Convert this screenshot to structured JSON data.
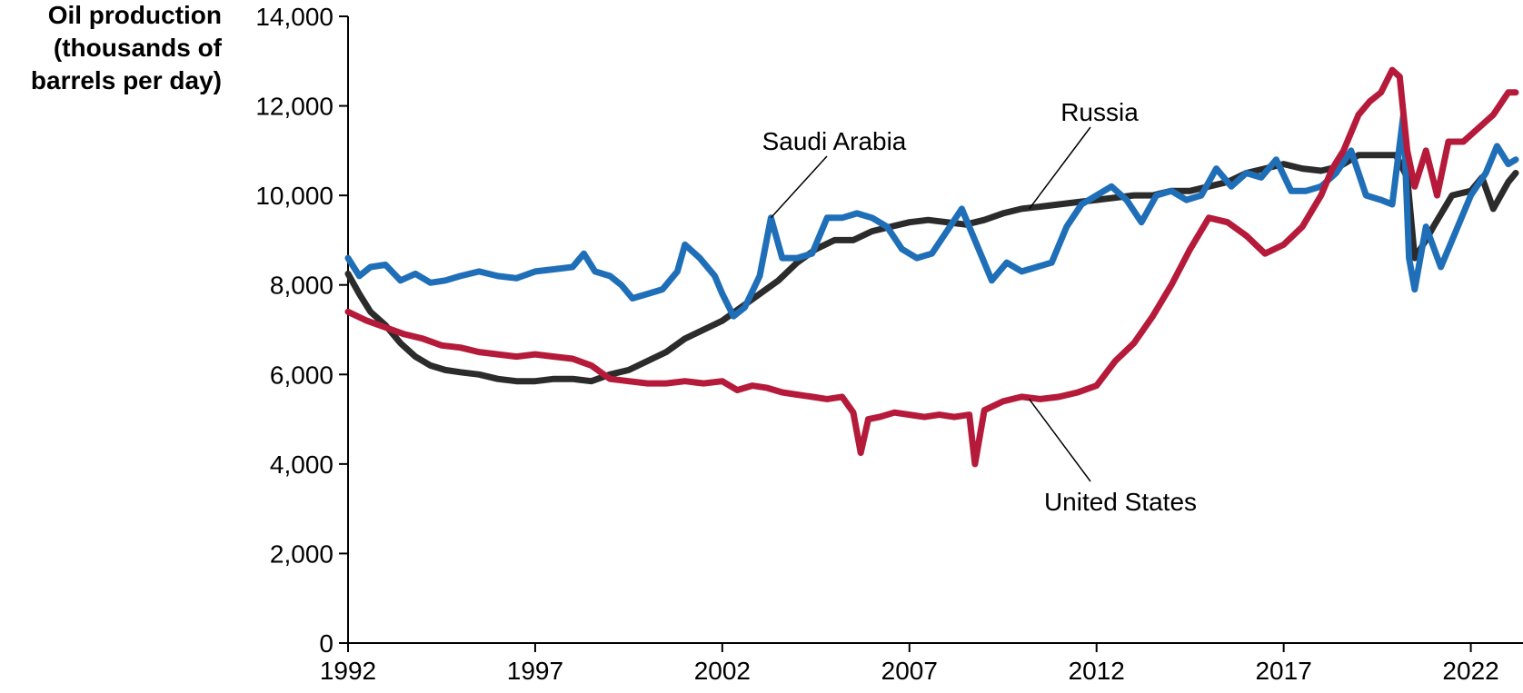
{
  "chart_data": {
    "type": "line",
    "ylabel": [
      "Oil production",
      "(thousands of",
      "barrels per day)"
    ],
    "ylim": [
      0,
      14000
    ],
    "xlim": [
      1992,
      2023.2
    ],
    "yticks": [
      "0",
      "2,000",
      "4,000",
      "6,000",
      "8,000",
      "10,000",
      "12,000",
      "14,000"
    ],
    "xticks": [
      "1992",
      "1997",
      "2002",
      "2007",
      "2012",
      "2017",
      "2022"
    ],
    "grid": false,
    "series": [
      {
        "name": "Russia",
        "color": "#2b2b2b",
        "x": [
          1992,
          1992.3,
          1992.6,
          1993,
          1993.4,
          1993.8,
          1994.2,
          1994.6,
          1995,
          1995.5,
          1996,
          1996.5,
          1997,
          1997.5,
          1998,
          1998.5,
          1999,
          1999.5,
          2000,
          2000.5,
          2001,
          2001.5,
          2002,
          2002.5,
          2003,
          2003.5,
          2004,
          2004.5,
          2005,
          2005.5,
          2006,
          2006.5,
          2007,
          2007.5,
          2008,
          2008.5,
          2009,
          2009.5,
          2010,
          2010.5,
          2011,
          2011.5,
          2012,
          2012.5,
          2013,
          2013.5,
          2014,
          2014.5,
          2015,
          2015.5,
          2016,
          2016.5,
          2017,
          2017.5,
          2018,
          2018.5,
          2019,
          2019.5,
          2020,
          2020.3,
          2020.5,
          2020.8,
          2021,
          2021.5,
          2022,
          2022.3,
          2022.6,
          2023,
          2023.2
        ],
        "values": [
          8250,
          7800,
          7400,
          7100,
          6700,
          6400,
          6200,
          6100,
          6050,
          6000,
          5900,
          5850,
          5850,
          5900,
          5900,
          5850,
          6000,
          6100,
          6300,
          6500,
          6800,
          7000,
          7200,
          7500,
          7800,
          8100,
          8500,
          8800,
          9000,
          9000,
          9200,
          9300,
          9400,
          9450,
          9400,
          9350,
          9450,
          9600,
          9700,
          9750,
          9800,
          9850,
          9900,
          9950,
          10000,
          10000,
          10100,
          10100,
          10200,
          10300,
          10500,
          10600,
          10700,
          10600,
          10550,
          10650,
          10900,
          10900,
          10900,
          10400,
          8600,
          9000,
          9300,
          10000,
          10100,
          10400,
          9700,
          10300,
          10500
        ]
      },
      {
        "name": "Saudi Arabia",
        "color": "#1f6fb8",
        "x": [
          1992,
          1992.3,
          1992.6,
          1993,
          1993.4,
          1993.8,
          1994.2,
          1994.6,
          1995,
          1995.5,
          1996,
          1996.5,
          1997,
          1997.5,
          1998,
          1998.3,
          1998.6,
          1999,
          1999.3,
          1999.6,
          2000,
          2000.4,
          2000.8,
          2001,
          2001.4,
          2001.8,
          2002,
          2002.3,
          2002.6,
          2003,
          2003.3,
          2003.6,
          2004,
          2004.4,
          2004.8,
          2005.2,
          2005.6,
          2006,
          2006.4,
          2006.8,
          2007.2,
          2007.6,
          2008,
          2008.4,
          2008.8,
          2009.2,
          2009.6,
          2010,
          2010.4,
          2010.8,
          2011.2,
          2011.6,
          2012,
          2012.4,
          2012.8,
          2013.2,
          2013.6,
          2014,
          2014.4,
          2014.8,
          2015.2,
          2015.6,
          2016,
          2016.4,
          2016.8,
          2017.2,
          2017.6,
          2018,
          2018.4,
          2018.8,
          2019.2,
          2019.6,
          2019.9,
          2020.2,
          2020.35,
          2020.5,
          2020.8,
          2021.2,
          2021.6,
          2022,
          2022.4,
          2022.7,
          2023,
          2023.2
        ],
        "values": [
          8600,
          8200,
          8400,
          8450,
          8100,
          8250,
          8050,
          8100,
          8200,
          8300,
          8200,
          8150,
          8300,
          8350,
          8400,
          8700,
          8300,
          8200,
          8000,
          7700,
          7800,
          7900,
          8300,
          8900,
          8600,
          8200,
          7800,
          7300,
          7500,
          8200,
          9500,
          8600,
          8600,
          8700,
          9500,
          9500,
          9600,
          9500,
          9300,
          8800,
          8600,
          8700,
          9200,
          9700,
          8900,
          8100,
          8500,
          8300,
          8400,
          8500,
          9300,
          9800,
          10000,
          10200,
          9900,
          9400,
          10000,
          10100,
          9900,
          10000,
          10600,
          10200,
          10500,
          10400,
          10800,
          10100,
          10100,
          10200,
          10500,
          11000,
          10000,
          9900,
          9800,
          11800,
          8600,
          7900,
          9300,
          8400,
          9200,
          10000,
          10500,
          11100,
          10700,
          10800
        ]
      },
      {
        "name": "United States",
        "color": "#b51a3a",
        "x": [
          1992,
          1992.5,
          1993,
          1993.5,
          1994,
          1994.5,
          1995,
          1995.5,
          1996,
          1996.5,
          1997,
          1997.5,
          1998,
          1998.5,
          1999,
          1999.5,
          2000,
          2000.5,
          2001,
          2001.5,
          2002,
          2002.4,
          2002.8,
          2003.2,
          2003.6,
          2004,
          2004.4,
          2004.8,
          2005.2,
          2005.5,
          2005.7,
          2005.9,
          2006.2,
          2006.6,
          2007,
          2007.4,
          2007.8,
          2008.2,
          2008.6,
          2008.75,
          2009,
          2009.5,
          2010,
          2010.5,
          2011,
          2011.5,
          2012,
          2012.5,
          2013,
          2013.5,
          2014,
          2014.5,
          2015,
          2015.5,
          2016,
          2016.5,
          2017,
          2017.5,
          2018,
          2018.3,
          2018.6,
          2019,
          2019.3,
          2019.6,
          2019.9,
          2020.1,
          2020.3,
          2020.5,
          2020.8,
          2021.1,
          2021.4,
          2021.8,
          2022.2,
          2022.6,
          2023,
          2023.2
        ],
        "values": [
          7400,
          7200,
          7050,
          6900,
          6800,
          6650,
          6600,
          6500,
          6450,
          6400,
          6450,
          6400,
          6350,
          6200,
          5900,
          5850,
          5800,
          5800,
          5850,
          5800,
          5850,
          5650,
          5750,
          5700,
          5600,
          5550,
          5500,
          5450,
          5500,
          5150,
          4250,
          5000,
          5050,
          5150,
          5100,
          5050,
          5100,
          5050,
          5100,
          4000,
          5200,
          5400,
          5500,
          5450,
          5500,
          5600,
          5750,
          6300,
          6700,
          7300,
          8000,
          8800,
          9500,
          9400,
          9100,
          8700,
          8900,
          9300,
          10000,
          10600,
          11000,
          11800,
          12100,
          12300,
          12800,
          12650,
          11000,
          10200,
          11000,
          10000,
          11200,
          11200,
          11500,
          11800,
          12300,
          12300
        ]
      }
    ],
    "annotations": [
      {
        "text": "Saudi Arabia",
        "series": "Saudi Arabia",
        "point_x": 2003.3,
        "point_y": 9500
      },
      {
        "text": "Russia",
        "series": "Russia",
        "point_x": 2010.2,
        "point_y": 9700
      },
      {
        "text": "United States",
        "series": "United States",
        "point_x": 2010.2,
        "point_y": 5450
      }
    ]
  }
}
